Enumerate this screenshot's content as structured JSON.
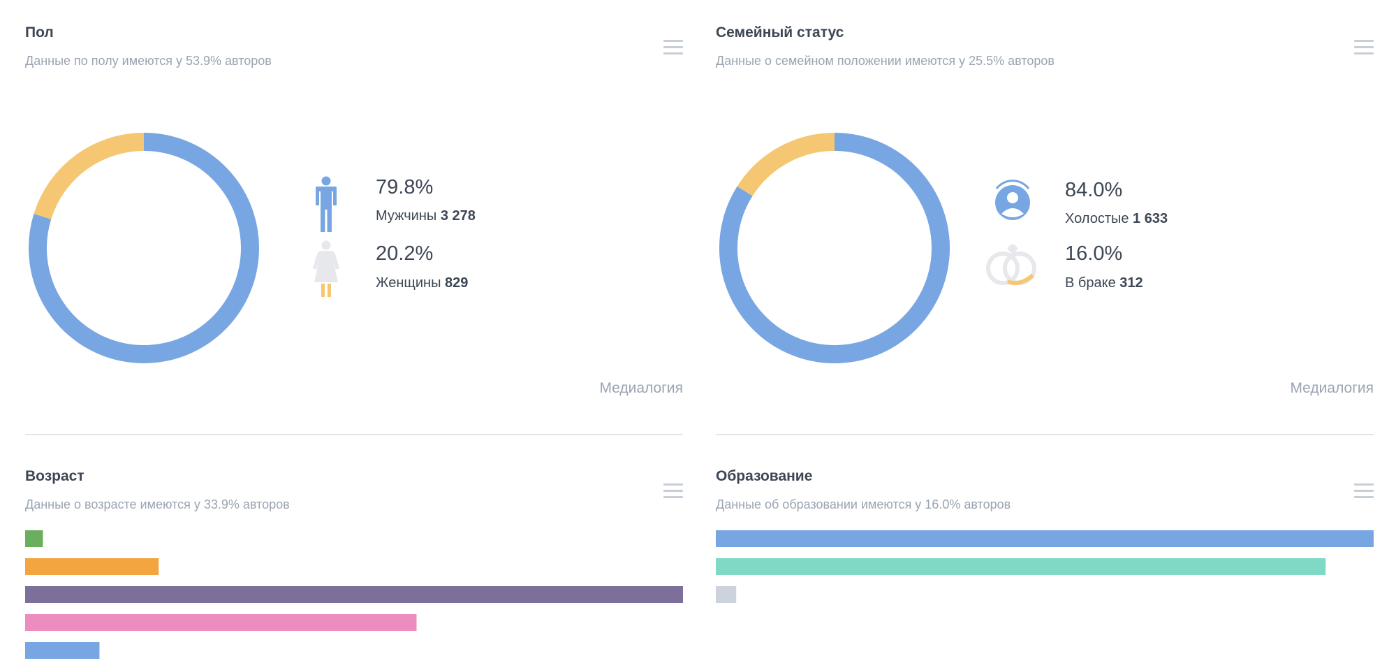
{
  "gender": {
    "title": "Пол",
    "subtitle": "Данные по полу имеются у 53.9% авторов",
    "credit": "Медиалогия",
    "items": [
      {
        "pct": "79.8%",
        "label": "Мужчины",
        "count": "3 278",
        "icon": "male-figure-icon",
        "color": "#78a6e2"
      },
      {
        "pct": "20.2%",
        "label": "Женщины",
        "count": "829",
        "icon": "female-figure-icon",
        "color": "#f5c772"
      }
    ]
  },
  "marital": {
    "title": "Семейный статус",
    "subtitle": "Данные о семейном положении имеются у 25.5% авторов",
    "credit": "Медиалогия",
    "items": [
      {
        "pct": "84.0%",
        "label": "Холостые",
        "count": "1 633",
        "icon": "single-person-icon",
        "color": "#78a6e2"
      },
      {
        "pct": "16.0%",
        "label": "В браке",
        "count": "312",
        "icon": "wedding-rings-icon",
        "color": "#f5c772"
      }
    ]
  },
  "age": {
    "title": "Возраст",
    "subtitle": "Данные о возрасте имеются у 33.9% авторов"
  },
  "education": {
    "title": "Образование",
    "subtitle": "Данные об образовании имеются у 16.0% авторов"
  },
  "chart_data": [
    {
      "type": "pie",
      "values": [
        79.8,
        20.2
      ],
      "colors": [
        "#78a6e2",
        "#f5c772"
      ],
      "title": "Пол"
    },
    {
      "type": "pie",
      "values": [
        84.0,
        16.0
      ],
      "colors": [
        "#78a6e2",
        "#f5c772"
      ],
      "title": "Семейный статус"
    },
    {
      "type": "bar",
      "orientation": "horizontal",
      "values": [
        2.7,
        20.3,
        100,
        59.5,
        11.3
      ],
      "colors": [
        "#6aaf5d",
        "#f3a53f",
        "#7c6f9a",
        "#ed8cbf",
        "#78a6e2"
      ],
      "title": "Возраст"
    },
    {
      "type": "bar",
      "orientation": "horizontal",
      "values": [
        100,
        92.7,
        3.1
      ],
      "colors": [
        "#78a6e2",
        "#7fd9c4",
        "#ccd3dc"
      ],
      "title": "Образование"
    }
  ]
}
